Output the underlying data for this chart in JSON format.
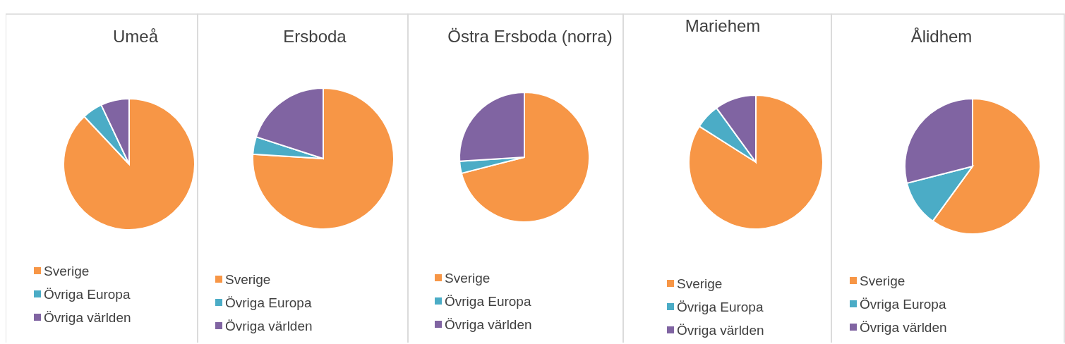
{
  "chart_data": [
    {
      "type": "pie",
      "title": "Umeå",
      "categories": [
        "Sverige",
        "Övriga Europa",
        "Övriga världen"
      ],
      "values": [
        88,
        5,
        7
      ],
      "colors": [
        "#f79646",
        "#4bacc6",
        "#8064a2"
      ],
      "legend": "bottom"
    },
    {
      "type": "pie",
      "title": "Ersboda",
      "categories": [
        "Sverige",
        "Övriga Europa",
        "Övriga världen"
      ],
      "values": [
        76,
        4,
        20
      ],
      "colors": [
        "#f79646",
        "#4bacc6",
        "#8064a2"
      ],
      "legend": "bottom"
    },
    {
      "type": "pie",
      "title": "Östra Ersboda (norra)",
      "categories": [
        "Sverige",
        "Övriga Europa",
        "Övriga världen"
      ],
      "values": [
        71,
        3,
        26
      ],
      "colors": [
        "#f79646",
        "#4bacc6",
        "#8064a2"
      ],
      "legend": "bottom"
    },
    {
      "type": "pie",
      "title": "Mariehem",
      "categories": [
        "Sverige",
        "Övriga Europa",
        "Övriga världen"
      ],
      "values": [
        84,
        6,
        10
      ],
      "colors": [
        "#f79646",
        "#4bacc6",
        "#8064a2"
      ],
      "legend": "bottom"
    },
    {
      "type": "pie",
      "title": "Ålidhem",
      "categories": [
        "Sverige",
        "Övriga Europa",
        "Övriga världen"
      ],
      "values": [
        60,
        11,
        29
      ],
      "colors": [
        "#f79646",
        "#4bacc6",
        "#8064a2"
      ],
      "legend": "bottom"
    }
  ]
}
